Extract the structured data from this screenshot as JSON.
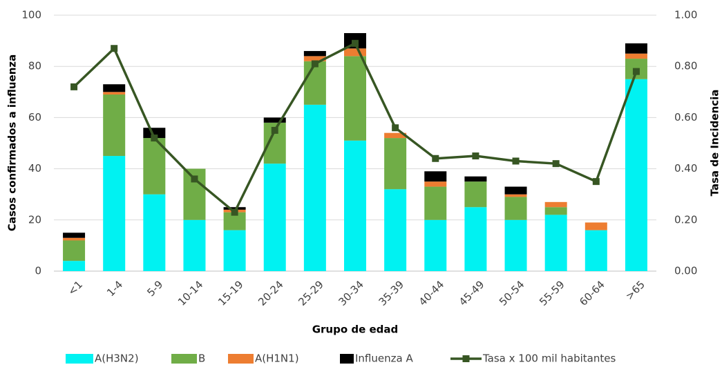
{
  "chart_data": {
    "type": "bar",
    "stacked": true,
    "x_label": "Grupo de edad",
    "y_label": "Casos confirmados a influenza",
    "y2_label": "Tasa de Incidencia",
    "categories": [
      "<1",
      "1-4",
      "5-9",
      "10-14",
      "15-19",
      "20-24",
      "25-29",
      "30-34",
      "35-39",
      "40-44",
      "45-49",
      "50-54",
      "55-59",
      "60-64",
      ">65"
    ],
    "series": [
      {
        "name": "A(H3N2)",
        "color": "#00f2f2",
        "values": [
          4,
          45,
          30,
          20,
          16,
          42,
          65,
          51,
          32,
          20,
          25,
          20,
          22,
          16,
          75
        ]
      },
      {
        "name": "B",
        "color": "#70ad47",
        "values": [
          8,
          24,
          22,
          20,
          7,
          16,
          17,
          33,
          20,
          13,
          10,
          9,
          3,
          0,
          8
        ]
      },
      {
        "name": "A(H1N1)",
        "color": "#ed7d31",
        "values": [
          1,
          1,
          0,
          0,
          1,
          0,
          2,
          3,
          2,
          2,
          0,
          1,
          2,
          3,
          2
        ]
      },
      {
        "name": "Influenza A",
        "color": "#000000",
        "values": [
          2,
          3,
          4,
          0,
          1,
          2,
          2,
          6,
          0,
          4,
          2,
          3,
          0,
          0,
          4
        ]
      },
      {
        "name": "Tasa x 100 mil habitantes",
        "color": "#375623",
        "type": "line",
        "axis": "y2",
        "values": [
          0.72,
          0.87,
          0.52,
          0.36,
          0.23,
          0.55,
          0.81,
          0.89,
          0.56,
          0.44,
          0.45,
          0.43,
          0.42,
          0.35,
          0.78
        ]
      }
    ],
    "ylim": [
      0,
      100
    ],
    "yticks": [
      0,
      20,
      40,
      60,
      80,
      100
    ],
    "y2lim": [
      0,
      1
    ],
    "y2ticks": [
      {
        "value": 0,
        "label": "0.00"
      },
      {
        "value": 0.2,
        "label": "0.20"
      },
      {
        "value": 0.4,
        "label": "0.40"
      },
      {
        "value": 0.6,
        "label": "0.60"
      },
      {
        "value": 0.8,
        "label": "0.80"
      },
      {
        "value": 1,
        "label": "1.00"
      }
    ],
    "grid": true,
    "legend": "bottom"
  }
}
